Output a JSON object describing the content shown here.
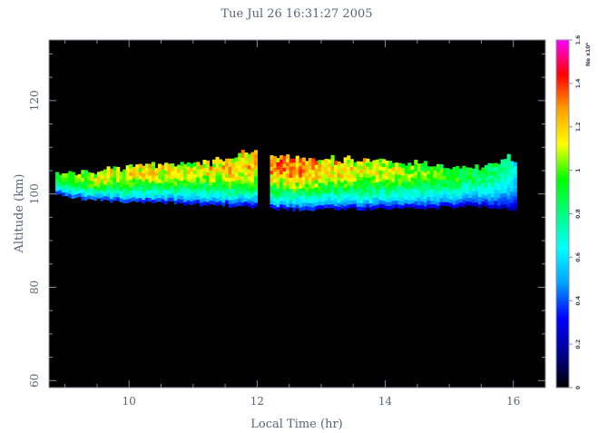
{
  "chart_data": {
    "type": "heatmap",
    "title": "Tue Jul 26 16:31:27 2005",
    "xlabel": "Local Time (hr)",
    "ylabel": "Altitude (km)",
    "xlim": [
      8.75,
      16.5
    ],
    "ylim": [
      58.5,
      133
    ],
    "xticks": [
      "10",
      "12",
      "14",
      "16"
    ],
    "xtick_values": [
      10,
      12,
      14,
      16
    ],
    "yticks": [
      "60",
      "80",
      "100",
      "120"
    ],
    "ytick_values": [
      60,
      80,
      100,
      120
    ],
    "background_color": "#000000",
    "colorbar": {
      "label": "Ne x10⁶",
      "range": [
        0,
        1.6
      ],
      "ticks": [
        "0",
        "0.2",
        "0.4",
        "0.6",
        "0.8",
        "1",
        "1.2",
        "1.4",
        "1.6"
      ],
      "tick_values": [
        0,
        0.2,
        0.4,
        0.6,
        0.8,
        1.0,
        1.2,
        1.4,
        1.6
      ],
      "colormap": [
        "#000000",
        "#000090",
        "#0000ff",
        "#00a0ff",
        "#00ffff",
        "#00ff80",
        "#00ff00",
        "#ffff00",
        "#ffa000",
        "#ff0000",
        "#ff00ff"
      ]
    },
    "data_gap": [
      11.98,
      12.18
    ],
    "layer_profile": {
      "x": [
        8.85,
        9.0,
        9.5,
        10.0,
        10.5,
        11.0,
        11.5,
        11.95,
        12.2,
        12.5,
        13.0,
        13.5,
        14.0,
        14.5,
        15.0,
        15.5,
        15.9,
        16.05
      ],
      "bottom_km": [
        99.5,
        98.5,
        98.0,
        97.5,
        97.5,
        97.0,
        96.8,
        96.5,
        96.0,
        96.0,
        96.0,
        96.0,
        96.0,
        96.2,
        96.5,
        96.5,
        96.0,
        96.0
      ],
      "top_km": [
        103.5,
        104.0,
        104.5,
        105.5,
        106.0,
        106.0,
        107.0,
        109.0,
        108.0,
        107.5,
        107.0,
        107.0,
        106.5,
        106.0,
        105.5,
        105.5,
        107.5,
        106.0
      ],
      "peak_Ne": [
        0.9,
        1.0,
        1.1,
        1.15,
        1.15,
        1.1,
        1.2,
        1.25,
        1.3,
        1.3,
        1.2,
        1.15,
        1.1,
        1.0,
        0.95,
        0.85,
        0.8,
        0.55
      ]
    }
  }
}
